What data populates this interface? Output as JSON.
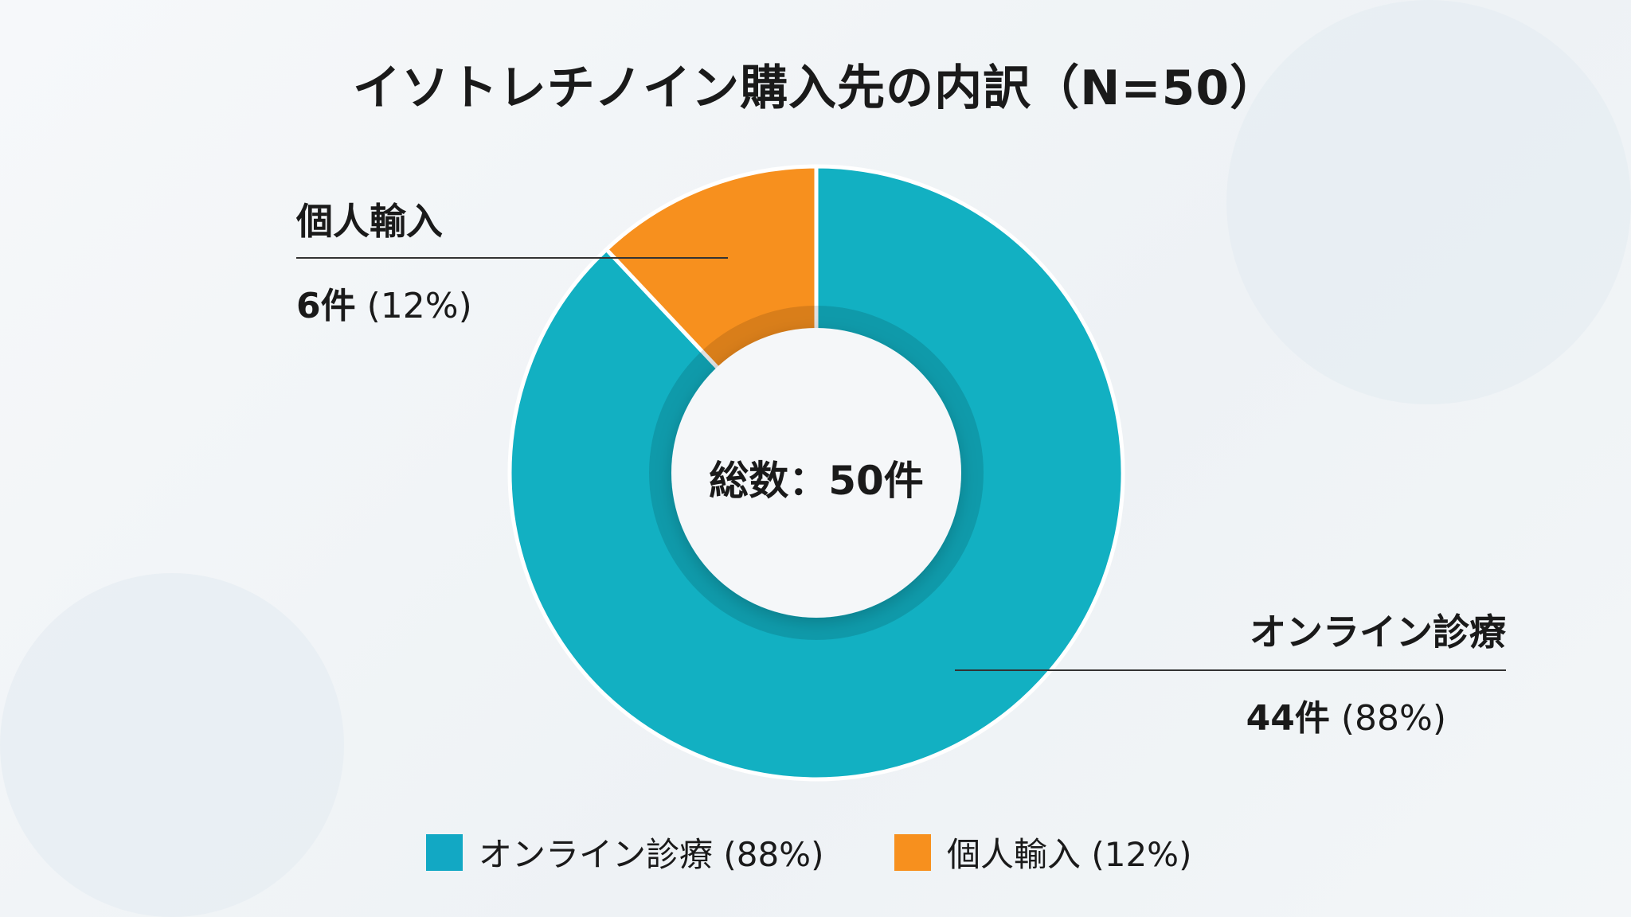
{
  "chart_data": {
    "type": "pie",
    "variant": "donut",
    "title": "イソトレチノイン購入先の内訳（N=50）",
    "center_label": "総数：50件",
    "slices": [
      {
        "name": "オンライン診療",
        "value": 44,
        "percent": 88,
        "count_label": "44件",
        "percent_label": "(88%)",
        "color": "#12b0c2",
        "legend": "オンライン診療 (88%)"
      },
      {
        "name": "個人輸入",
        "value": 6,
        "percent": 12,
        "count_label": "6件",
        "percent_label": "(12%)",
        "color": "#f7901e",
        "legend": "個人輸入 (12%)"
      }
    ],
    "legend_placement": "bottom"
  }
}
